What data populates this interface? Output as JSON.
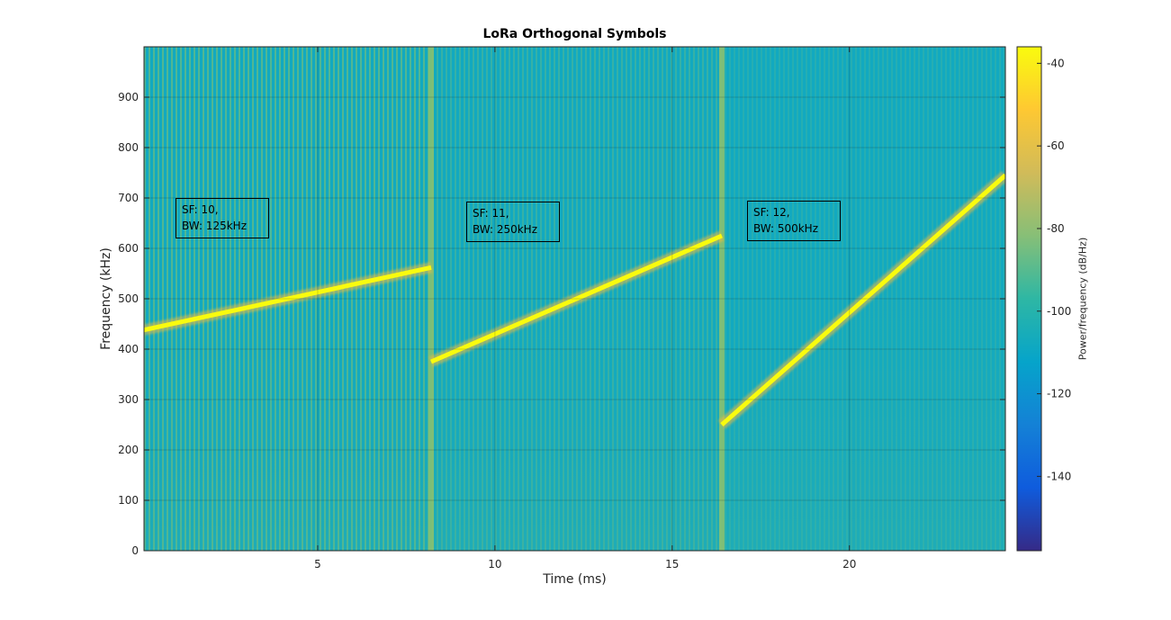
{
  "chart_data": {
    "type": "heatmap",
    "title": "LoRa Orthogonal Symbols",
    "xlabel": "Time (ms)",
    "ylabel": "Frequency (kHz)",
    "xlim": [
      0.1,
      24.4
    ],
    "ylim": [
      0,
      1000
    ],
    "xticks": [
      5,
      10,
      15,
      20
    ],
    "yticks": [
      0,
      100,
      200,
      300,
      400,
      500,
      600,
      700,
      800,
      900
    ],
    "grid": true,
    "colorbar": {
      "label": "Power/frequency (dB/Hz)",
      "range": [
        -158,
        -36
      ],
      "ticks": [
        -40,
        -60,
        -80,
        -100,
        -120,
        -140
      ],
      "colormap": [
        "#352a87",
        "#0f5cdd",
        "#1481d6",
        "#06a4ca",
        "#2eb7a4",
        "#87bf77",
        "#d1bb59",
        "#fec832",
        "#f9fb0e"
      ]
    },
    "background_colors": {
      "noise": "#12a9c0",
      "band_stripe": "#54b890",
      "boundary": "#88c070"
    },
    "chirps": [
      {
        "sf": 10,
        "bw_khz": 125,
        "t_start": 0.1,
        "t_end": 8.2,
        "f_start": 438,
        "f_end": 562
      },
      {
        "sf": 11,
        "bw_khz": 250,
        "t_start": 8.2,
        "t_end": 16.4,
        "f_start": 375,
        "f_end": 625
      },
      {
        "sf": 12,
        "bw_khz": 500,
        "t_start": 16.4,
        "t_end": 24.4,
        "f_start": 250,
        "f_end": 745
      }
    ],
    "symbol_boundaries_ms": [
      8.2,
      16.4
    ],
    "annotations": [
      {
        "line1": "SF: 10,",
        "line2": "BW: 125kHz",
        "t": 1.0,
        "f": 700
      },
      {
        "line1": "SF: 11,",
        "line2": "BW: 250kHz",
        "t": 9.2,
        "f": 693
      },
      {
        "line1": "SF: 12,",
        "line2": "BW: 500kHz",
        "t": 17.1,
        "f": 695
      }
    ]
  }
}
